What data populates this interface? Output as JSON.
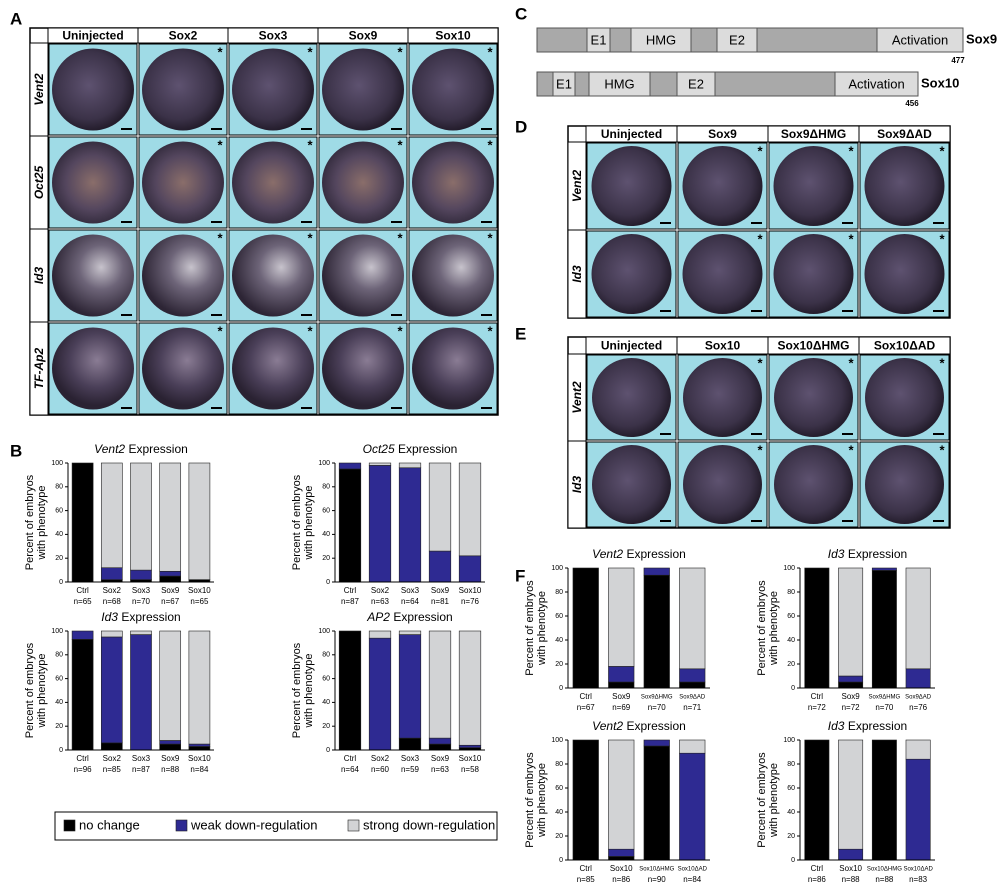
{
  "panel_labels": [
    "A",
    "B",
    "C",
    "D",
    "E",
    "F"
  ],
  "marker": "*",
  "panel_a": {
    "columns": [
      "Uninjected",
      "Sox2",
      "Sox3",
      "Sox9",
      "Sox10"
    ],
    "rows": [
      "Vent2",
      "Oct25",
      "Id3",
      "TF-Ap2"
    ]
  },
  "panel_c": {
    "proteins": [
      {
        "name": "Sox9",
        "length": 477,
        "domains": [
          "E1",
          "HMG",
          "E2",
          "Activation"
        ]
      },
      {
        "name": "Sox10",
        "length": 456,
        "domains": [
          "E1",
          "HMG",
          "E2",
          "Activation"
        ]
      }
    ]
  },
  "panel_d": {
    "columns": [
      "Uninjected",
      "Sox9",
      "Sox9ΔHMG",
      "Sox9ΔAD"
    ],
    "rows": [
      "Vent2",
      "Id3"
    ]
  },
  "panel_e": {
    "columns": [
      "Uninjected",
      "Sox10",
      "Sox10ΔHMG",
      "Sox10ΔAD"
    ],
    "rows": [
      "Vent2",
      "Id3"
    ]
  },
  "legend": [
    {
      "name": "no change",
      "color": "#000000"
    },
    {
      "name": "weak down-regulation",
      "color": "#2e2a92"
    },
    {
      "name": "strong down-regulation",
      "color": "#d2d3d5"
    }
  ],
  "chart_data": [
    {
      "type": "bar",
      "stacked": true,
      "title_gene": "Vent2",
      "title_text": "Expression",
      "ylabel": [
        "Percent of embryos",
        "with phenotype"
      ],
      "categories": [
        "Ctrl",
        "Sox2",
        "Sox3",
        "Sox9",
        "Sox10"
      ],
      "n_labels": [
        "n=65",
        "n=68",
        "n=70",
        "n=67",
        "n=65"
      ],
      "ylim": [
        0,
        100
      ],
      "yticks": [
        0,
        20,
        40,
        60,
        80,
        100
      ],
      "series": [
        {
          "values": [
            100,
            2,
            2,
            5,
            2
          ]
        },
        {
          "values": [
            0,
            10,
            8,
            4,
            0
          ]
        },
        {
          "values": [
            0,
            88,
            90,
            91,
            98
          ]
        }
      ]
    },
    {
      "type": "bar",
      "stacked": true,
      "title_gene": "Oct25",
      "title_text": "Expression",
      "ylabel": [
        "Percent of embryos",
        "with phenotype"
      ],
      "categories": [
        "Ctrl",
        "Sox2",
        "Sox3",
        "Sox9",
        "Sox10"
      ],
      "n_labels": [
        "n=87",
        "n=63",
        "n=64",
        "n=81",
        "n=76"
      ],
      "ylim": [
        0,
        100
      ],
      "yticks": [
        0,
        20,
        40,
        60,
        80,
        100
      ],
      "series": [
        {
          "values": [
            95,
            0,
            0,
            0,
            0
          ]
        },
        {
          "values": [
            5,
            98,
            96,
            26,
            22
          ]
        },
        {
          "values": [
            0,
            2,
            4,
            74,
            78
          ]
        }
      ]
    },
    {
      "type": "bar",
      "stacked": true,
      "title_gene": "Id3",
      "title_text": "Expression",
      "ylabel": [
        "Percent of embryos",
        "with phenotype"
      ],
      "categories": [
        "Ctrl",
        "Sox2",
        "Sox3",
        "Sox9",
        "Sox10"
      ],
      "n_labels": [
        "n=96",
        "n=85",
        "n=87",
        "n=88",
        "n=84"
      ],
      "ylim": [
        0,
        100
      ],
      "yticks": [
        0,
        20,
        40,
        60,
        80,
        100
      ],
      "series": [
        {
          "values": [
            93,
            6,
            0,
            5,
            3
          ]
        },
        {
          "values": [
            7,
            89,
            97,
            3,
            2
          ]
        },
        {
          "values": [
            0,
            5,
            3,
            92,
            95
          ]
        }
      ]
    },
    {
      "type": "bar",
      "stacked": true,
      "title_gene": "AP2",
      "title_text": "Expression",
      "ylabel": [
        "Percent of embryos",
        "with phenotype"
      ],
      "categories": [
        "Ctrl",
        "Sox2",
        "Sox3",
        "Sox9",
        "Sox10"
      ],
      "n_labels": [
        "n=64",
        "n=60",
        "n=59",
        "n=63",
        "n=58"
      ],
      "ylim": [
        0,
        100
      ],
      "yticks": [
        0,
        20,
        40,
        60,
        80,
        100
      ],
      "series": [
        {
          "values": [
            100,
            0,
            10,
            5,
            2
          ]
        },
        {
          "values": [
            0,
            94,
            87,
            5,
            2
          ]
        },
        {
          "values": [
            0,
            6,
            3,
            90,
            96
          ]
        }
      ]
    },
    {
      "type": "bar",
      "stacked": true,
      "title_gene": "Vent2",
      "title_text": "Expression",
      "ylabel": [
        "Percent of embryos",
        "with phenotype"
      ],
      "categories": [
        "Ctrl",
        "Sox9",
        "Sox9ΔHMG",
        "Sox9ΔAD"
      ],
      "n_labels": [
        "n=67",
        "n=69",
        "n=70",
        "n=71"
      ],
      "ylim": [
        0,
        100
      ],
      "yticks": [
        0,
        20,
        40,
        60,
        80,
        100
      ],
      "series": [
        {
          "values": [
            100,
            5,
            94,
            5
          ]
        },
        {
          "values": [
            0,
            13,
            6,
            11
          ]
        },
        {
          "values": [
            0,
            82,
            0,
            84
          ]
        }
      ]
    },
    {
      "type": "bar",
      "stacked": true,
      "title_gene": "Id3",
      "title_text": "Expression",
      "ylabel": [
        "Percent of embryos",
        "with phenotype"
      ],
      "categories": [
        "Ctrl",
        "Sox9",
        "Sox9ΔHMG",
        "Sox9ΔAD"
      ],
      "n_labels": [
        "n=72",
        "n=72",
        "n=70",
        "n=76"
      ],
      "ylim": [
        0,
        100
      ],
      "yticks": [
        0,
        20,
        40,
        60,
        80,
        100
      ],
      "series": [
        {
          "values": [
            100,
            5,
            98,
            0
          ]
        },
        {
          "values": [
            0,
            5,
            2,
            16
          ]
        },
        {
          "values": [
            0,
            90,
            0,
            84
          ]
        }
      ]
    },
    {
      "type": "bar",
      "stacked": true,
      "title_gene": "Vent2",
      "title_text": "Expression",
      "ylabel": [
        "Percent of embryos",
        "with phenotype"
      ],
      "categories": [
        "Ctrl",
        "Sox10",
        "Sox10ΔHMG",
        "Sox10ΔAD"
      ],
      "n_labels": [
        "n=85",
        "n=86",
        "n=90",
        "n=84"
      ],
      "ylim": [
        0,
        100
      ],
      "yticks": [
        0,
        20,
        40,
        60,
        80,
        100
      ],
      "series": [
        {
          "values": [
            100,
            3,
            95,
            0
          ]
        },
        {
          "values": [
            0,
            6,
            5,
            89
          ]
        },
        {
          "values": [
            0,
            91,
            0,
            11
          ]
        }
      ]
    },
    {
      "type": "bar",
      "stacked": true,
      "title_gene": "Id3",
      "title_text": "Expression",
      "ylabel": [
        "Percent of embryos",
        "with phenotype"
      ],
      "categories": [
        "Ctrl",
        "Sox10",
        "Sox10ΔHMG",
        "Sox10ΔAD"
      ],
      "n_labels": [
        "n=86",
        "n=88",
        "n=88",
        "n=83"
      ],
      "ylim": [
        0,
        100
      ],
      "yticks": [
        0,
        20,
        40,
        60,
        80,
        100
      ],
      "series": [
        {
          "values": [
            100,
            0,
            100,
            0
          ]
        },
        {
          "values": [
            0,
            9,
            0,
            84
          ]
        },
        {
          "values": [
            0,
            91,
            0,
            16
          ]
        }
      ]
    }
  ]
}
